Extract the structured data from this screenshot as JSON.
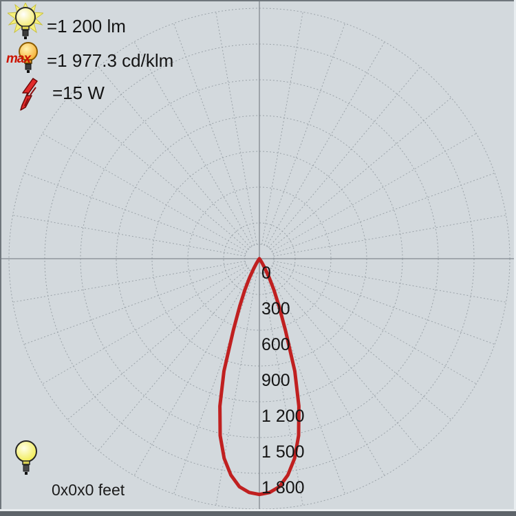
{
  "colors": {
    "background": "#d3d9dd",
    "grid": "#9aa2a8",
    "axis": "#81888e",
    "curve": "#c02020",
    "text": "#141414",
    "max_label": "#cc1400"
  },
  "legend": {
    "rows": [
      {
        "icon": "bulb-rays-icon",
        "text": "=1 200 lm"
      },
      {
        "icon": "bulb-max-icon",
        "prefix": "max",
        "text": "=1 977.3 cd/klm"
      },
      {
        "icon": "lightning-icon",
        "text": "=15 W"
      }
    ]
  },
  "footer": {
    "icon": "bulb-icon",
    "text": "0x0x0 feet"
  },
  "chart_data": {
    "type": "polar_photometric",
    "units": "cd/klm",
    "luminous_flux_lm": 1200,
    "max_intensity_cd_klm": 1977.3,
    "power_w": 15,
    "radial_tick_labels": [
      "0",
      "300",
      "600",
      "900",
      "1 200",
      "1 500",
      "1 800"
    ],
    "radial_tick_step": 300,
    "radial_axis_max": 1800,
    "angular_grid_step_deg": 10,
    "grid": "dashed polar grid, rings every 300 cd/klm, solid vertical and horizontal axes",
    "curve": {
      "gamma_deg": [
        -40,
        -37.5,
        -35,
        -32.5,
        -30,
        -27.5,
        -25,
        -22.5,
        -20,
        -17.5,
        -15,
        -12.5,
        -10,
        -7.5,
        -5,
        -2.5,
        0,
        2.5,
        5,
        7.5,
        10,
        12.5,
        15,
        17.5,
        20,
        22.5,
        25,
        27.5,
        30,
        32.5,
        35,
        37.5,
        40
      ],
      "intensity_cd_klm": [
        0,
        4,
        15,
        45,
        95,
        175,
        290,
        430,
        640,
        989,
        1280,
        1520,
        1700,
        1830,
        1920,
        1962,
        1977.3,
        1962,
        1920,
        1830,
        1700,
        1520,
        1280,
        989,
        640,
        430,
        290,
        175,
        95,
        45,
        15,
        4,
        0
      ]
    }
  }
}
